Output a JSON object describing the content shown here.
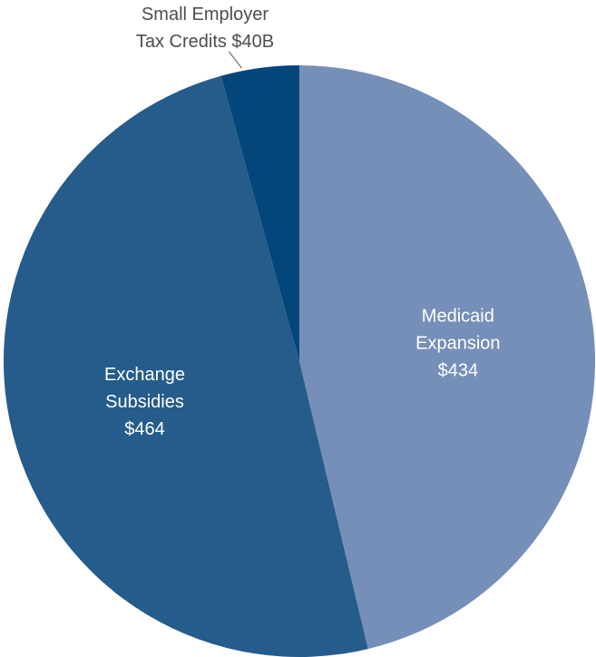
{
  "chart_data": {
    "type": "pie",
    "start": "12 o'clock, clockwise",
    "slices": [
      {
        "label_lines": [
          "Medicaid",
          "Expansion",
          "$434"
        ],
        "value": 434,
        "color": "#768fb8"
      },
      {
        "label_lines": [
          "Exchange",
          "Subsidies",
          "$464"
        ],
        "value": 464,
        "color": "#255c8c"
      },
      {
        "label_lines": [
          "Small Employer",
          "Tax Credits $40B"
        ],
        "value": 40,
        "color": "#04457a",
        "label_position": "outside"
      }
    ]
  }
}
